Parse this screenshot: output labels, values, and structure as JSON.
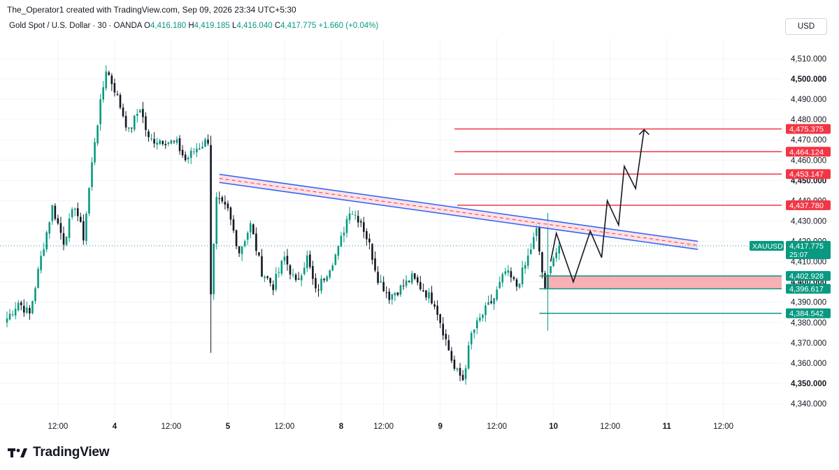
{
  "header": {
    "text": "The_Operator1 created with TradingView.com, Sep 09, 2026 23:34 UTC+5:30"
  },
  "legend": {
    "symbol": "Gold Spot / U.S. Dollar · 30 · OANDA",
    "o_label": "O",
    "o_value": "4,416.180",
    "h_label": "H",
    "h_value": "4,419.185",
    "l_label": "L",
    "l_value": "4,416.040",
    "c_label": "C",
    "c_value": "4,417.775",
    "change": "+1.660 (+0.04%)"
  },
  "currency_button": "USD",
  "brand": {
    "name": "TradingView"
  },
  "colors": {
    "up": "#089981",
    "down": "#131722",
    "resistance": "#f23645",
    "support": "#089981",
    "channel": "#2962ff",
    "zone": "#f7a1a8"
  },
  "chart_data": {
    "type": "candlestick",
    "symbol": "XAUUSD",
    "ylim": [
      4335,
      4518
    ],
    "y_ticks": [
      {
        "v": 4510,
        "label": "4,510.000"
      },
      {
        "v": 4500,
        "label": "4,500.000",
        "bold": true
      },
      {
        "v": 4490,
        "label": "4,490.000"
      },
      {
        "v": 4480,
        "label": "4,480.000"
      },
      {
        "v": 4470,
        "label": "4,470.000"
      },
      {
        "v": 4460,
        "label": "4,460.000"
      },
      {
        "v": 4450,
        "label": "4,450.000",
        "bold": true
      },
      {
        "v": 4440,
        "label": "4,440.000"
      },
      {
        "v": 4430,
        "label": "4,430.000"
      },
      {
        "v": 4420,
        "label": "4,420.000"
      },
      {
        "v": 4410,
        "label": "4,410.000"
      },
      {
        "v": 4400,
        "label": "4,400.000",
        "bold": true
      },
      {
        "v": 4390,
        "label": "4,390.000"
      },
      {
        "v": 4380,
        "label": "4,380.000"
      },
      {
        "v": 4370,
        "label": "4,370.000"
      },
      {
        "v": 4360,
        "label": "4,360.000"
      },
      {
        "v": 4350,
        "label": "4,350.000",
        "bold": true
      },
      {
        "v": 4340,
        "label": "4,340.000"
      }
    ],
    "x_ticks": [
      {
        "bar": 18,
        "label": "12:00"
      },
      {
        "bar": 38,
        "label": "4",
        "bold": true
      },
      {
        "bar": 58,
        "label": "12:00"
      },
      {
        "bar": 78,
        "label": "5",
        "bold": true
      },
      {
        "bar": 98,
        "label": "12:00"
      },
      {
        "bar": 118,
        "label": "8",
        "bold": true
      },
      {
        "bar": 133,
        "label": "12:00"
      },
      {
        "bar": 153,
        "label": "9",
        "bold": true
      },
      {
        "bar": 173,
        "label": "12:00"
      },
      {
        "bar": 193,
        "label": "10",
        "bold": true
      },
      {
        "bar": 213,
        "label": "12:00"
      },
      {
        "bar": 233,
        "label": "11",
        "bold": true
      },
      {
        "bar": 253,
        "label": "12:00"
      }
    ],
    "bar_count": 268,
    "anchors": [
      [
        0,
        4382
      ],
      [
        4,
        4390
      ],
      [
        8,
        4384
      ],
      [
        12,
        4412
      ],
      [
        16,
        4437
      ],
      [
        20,
        4420
      ],
      [
        24,
        4438
      ],
      [
        27,
        4422
      ],
      [
        31,
        4470
      ],
      [
        35,
        4505
      ],
      [
        38,
        4495
      ],
      [
        43,
        4474
      ],
      [
        47,
        4486
      ],
      [
        50,
        4470
      ],
      [
        55,
        4470
      ],
      [
        60,
        4468
      ],
      [
        63,
        4460
      ],
      [
        67,
        4466
      ],
      [
        71,
        4470
      ],
      [
        72,
        4395
      ],
      [
        74,
        4440
      ],
      [
        78,
        4435
      ],
      [
        82,
        4415
      ],
      [
        86,
        4428
      ],
      [
        90,
        4405
      ],
      [
        94,
        4398
      ],
      [
        98,
        4412
      ],
      [
        102,
        4399
      ],
      [
        106,
        4412
      ],
      [
        109,
        4395
      ],
      [
        113,
        4405
      ],
      [
        117,
        4416
      ],
      [
        121,
        4436
      ],
      [
        125,
        4430
      ],
      [
        128,
        4418
      ],
      [
        131,
        4402
      ],
      [
        135,
        4393
      ],
      [
        139,
        4397
      ],
      [
        143,
        4402
      ],
      [
        147,
        4396
      ],
      [
        151,
        4390
      ],
      [
        154,
        4376
      ],
      [
        158,
        4357
      ],
      [
        161,
        4352
      ],
      [
        164,
        4374
      ],
      [
        168,
        4384
      ],
      [
        172,
        4392
      ],
      [
        176,
        4405
      ],
      [
        180,
        4398
      ],
      [
        183,
        4408
      ],
      [
        187,
        4425
      ],
      [
        190,
        4395
      ],
      [
        192,
        4410
      ],
      [
        195,
        4417
      ]
    ],
    "last_price": 4417.775,
    "countdown": "25:07",
    "price_labels": [
      {
        "value": 4475.375,
        "label": "4,475.375",
        "kind": "resistance",
        "from_bar": 158
      },
      {
        "value": 4464.124,
        "label": "4,464.124",
        "kind": "resistance",
        "from_bar": 158
      },
      {
        "value": 4453.147,
        "label": "4,453.147",
        "kind": "resistance",
        "from_bar": 158
      },
      {
        "value": 4437.78,
        "label": "4,437.780",
        "kind": "resistance",
        "from_bar": 159
      },
      {
        "value": 4402.928,
        "label": "4,402.928",
        "kind": "support",
        "from_bar": 188
      },
      {
        "value": 4396.617,
        "label": "4,396.617",
        "kind": "support",
        "from_bar": 188
      },
      {
        "value": 4384.542,
        "label": "4,384.542",
        "kind": "support",
        "from_bar": 188
      }
    ],
    "channel": {
      "upper": [
        {
          "bar": 75,
          "price": 4453
        },
        {
          "bar": 244,
          "price": 4420
        }
      ],
      "lower": [
        {
          "bar": 75,
          "price": 4449
        },
        {
          "bar": 244,
          "price": 4416
        }
      ]
    },
    "projection_path": [
      {
        "bar": 192,
        "price": 4410
      },
      {
        "bar": 194,
        "price": 4424
      },
      {
        "bar": 200,
        "price": 4400
      },
      {
        "bar": 206,
        "price": 4425
      },
      {
        "bar": 210,
        "price": 4412
      },
      {
        "bar": 212,
        "price": 4440
      },
      {
        "bar": 216,
        "price": 4428
      },
      {
        "bar": 218,
        "price": 4457
      },
      {
        "bar": 222,
        "price": 4446
      },
      {
        "bar": 225,
        "price": 4475
      }
    ],
    "support_zone": {
      "top": 4402.928,
      "bottom": 4396.617,
      "from_bar": 190
    },
    "xaxis_label": "XAUUSD"
  }
}
